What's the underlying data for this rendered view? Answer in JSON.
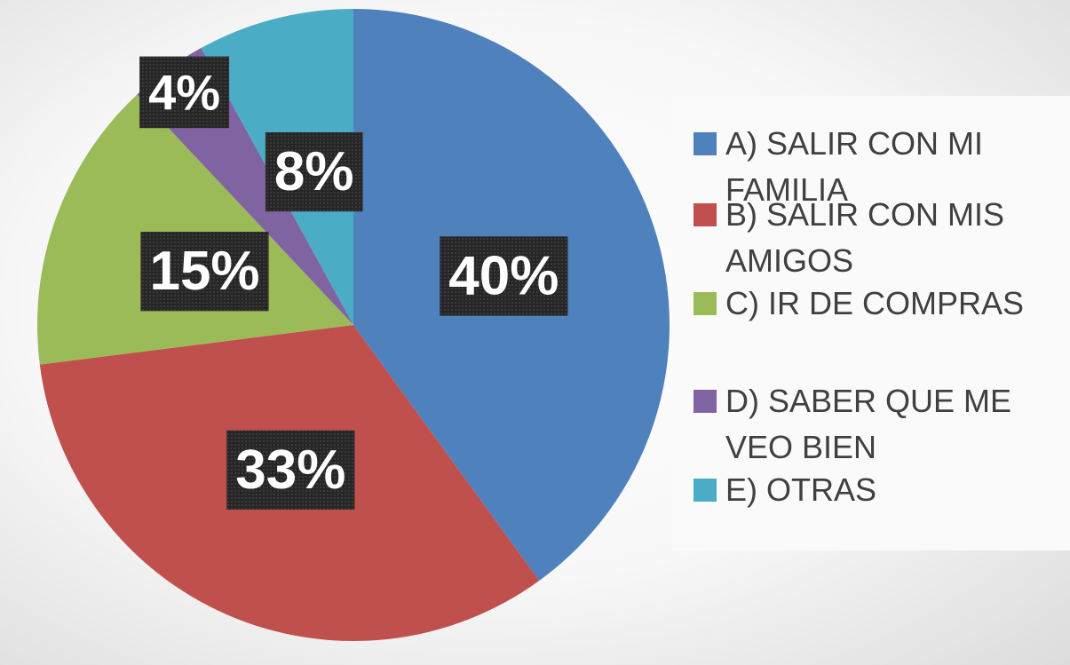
{
  "chart_data": {
    "type": "pie",
    "categories": [
      "A) SALIR CON MI FAMILIA",
      "B) SALIR CON MIS AMIGOS",
      "C) IR DE COMPRAS",
      "D) SABER QUE ME VEO BIEN",
      "E) OTRAS"
    ],
    "values": [
      40,
      33,
      15,
      4,
      8
    ],
    "value_labels": [
      "40%",
      "33%",
      "15%",
      "4%",
      "8%"
    ],
    "colors": [
      "#4f81bd",
      "#c0504d",
      "#9bbb59",
      "#8064a2",
      "#4bacc6"
    ],
    "legend": "right"
  }
}
